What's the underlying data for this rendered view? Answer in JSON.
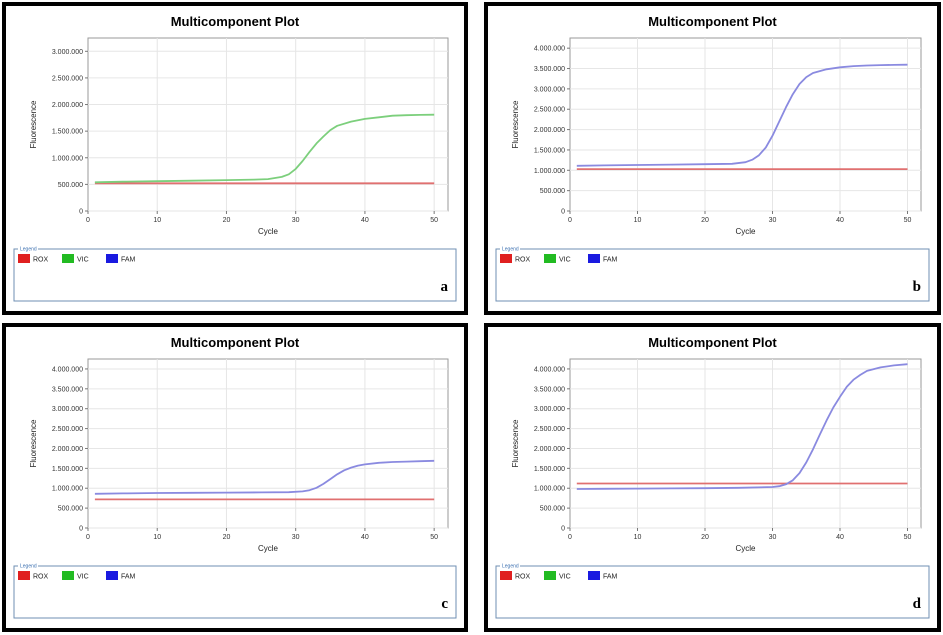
{
  "panels_meta": {
    "legend_title": "Legend",
    "legend_items": [
      {
        "label": "ROX",
        "color": "#e02020"
      },
      {
        "label": "VIC",
        "color": "#22bb22"
      },
      {
        "label": "FAM",
        "color": "#1a1ae0"
      }
    ]
  },
  "chart_data": [
    {
      "type": "line",
      "panel_label": "a",
      "title": "Multicomponent Plot",
      "xlabel": "Cycle",
      "ylabel": "Fluorescence",
      "xlim": [
        0,
        52
      ],
      "ylim": [
        0,
        3250000
      ],
      "xticks": [
        0,
        10,
        20,
        30,
        40,
        50
      ],
      "yticks": [
        0,
        500000,
        1000000,
        1500000,
        2000000,
        2500000,
        3000000
      ],
      "ytick_labels": [
        "0",
        "500.000",
        "1.000.000",
        "1.500.000",
        "2.000.000",
        "2.500.000",
        "3.000.000"
      ],
      "grid": true,
      "legend_position": "bottom",
      "series": [
        {
          "name": "ROX",
          "color": "#e07070",
          "x": [
            1,
            10,
            20,
            30,
            40,
            50
          ],
          "y": [
            520000,
            520000,
            520000,
            520000,
            520000,
            520000
          ]
        },
        {
          "name": "VIC",
          "color": "#7ccf7c",
          "x": [
            1,
            5,
            10,
            15,
            20,
            24,
            26,
            28,
            29,
            30,
            31,
            32,
            33,
            34,
            35,
            36,
            38,
            40,
            42,
            44,
            46,
            48,
            50
          ],
          "y": [
            540000,
            550000,
            560000,
            570000,
            580000,
            590000,
            600000,
            640000,
            690000,
            790000,
            940000,
            1110000,
            1270000,
            1400000,
            1520000,
            1600000,
            1680000,
            1730000,
            1760000,
            1790000,
            1800000,
            1805000,
            1810000
          ]
        }
      ]
    },
    {
      "type": "line",
      "panel_label": "b",
      "title": "Multicomponent Plot",
      "xlabel": "Cycle",
      "ylabel": "Fluorescence",
      "xlim": [
        0,
        52
      ],
      "ylim": [
        0,
        4250000
      ],
      "xticks": [
        0,
        10,
        20,
        30,
        40,
        50
      ],
      "yticks": [
        0,
        500000,
        1000000,
        1500000,
        2000000,
        2500000,
        3000000,
        3500000,
        4000000
      ],
      "ytick_labels": [
        "0",
        "500.000",
        "1.000.000",
        "1.500.000",
        "2.000.000",
        "2.500.000",
        "3.000.000",
        "3.500.000",
        "4.000.000"
      ],
      "grid": true,
      "legend_position": "bottom",
      "series": [
        {
          "name": "ROX",
          "color": "#e07070",
          "x": [
            1,
            10,
            20,
            30,
            40,
            50
          ],
          "y": [
            1030000,
            1030000,
            1030000,
            1030000,
            1030000,
            1030000
          ]
        },
        {
          "name": "FAM",
          "color": "#8a8ae0",
          "x": [
            1,
            5,
            10,
            15,
            20,
            24,
            26,
            27,
            28,
            29,
            30,
            31,
            32,
            33,
            34,
            35,
            36,
            38,
            40,
            42,
            44,
            46,
            48,
            50
          ],
          "y": [
            1110000,
            1120000,
            1130000,
            1140000,
            1150000,
            1160000,
            1200000,
            1260000,
            1370000,
            1560000,
            1850000,
            2200000,
            2550000,
            2870000,
            3120000,
            3290000,
            3390000,
            3480000,
            3530000,
            3560000,
            3575000,
            3585000,
            3590000,
            3595000
          ]
        }
      ]
    },
    {
      "type": "line",
      "panel_label": "c",
      "title": "Multicomponent Plot",
      "xlabel": "Cycle",
      "ylabel": "Fluorescence",
      "xlim": [
        0,
        52
      ],
      "ylim": [
        0,
        4250000
      ],
      "xticks": [
        0,
        10,
        20,
        30,
        40,
        50
      ],
      "yticks": [
        0,
        500000,
        1000000,
        1500000,
        2000000,
        2500000,
        3000000,
        3500000,
        4000000
      ],
      "ytick_labels": [
        "0",
        "500.000",
        "1.000.000",
        "1.500.000",
        "2.000.000",
        "2.500.000",
        "3.000.000",
        "3.500.000",
        "4.000.000"
      ],
      "grid": true,
      "legend_position": "bottom",
      "series": [
        {
          "name": "ROX",
          "color": "#e07070",
          "x": [
            1,
            10,
            20,
            30,
            40,
            50
          ],
          "y": [
            720000,
            720000,
            720000,
            720000,
            720000,
            720000
          ]
        },
        {
          "name": "FAM",
          "color": "#8a8ae0",
          "x": [
            1,
            5,
            10,
            15,
            20,
            25,
            29,
            31,
            32,
            33,
            34,
            35,
            36,
            37,
            38,
            39,
            40,
            42,
            44,
            46,
            48,
            50
          ],
          "y": [
            860000,
            870000,
            880000,
            885000,
            890000,
            895000,
            900000,
            920000,
            950000,
            1010000,
            1110000,
            1230000,
            1350000,
            1450000,
            1520000,
            1570000,
            1600000,
            1640000,
            1660000,
            1670000,
            1680000,
            1690000
          ]
        }
      ]
    },
    {
      "type": "line",
      "panel_label": "d",
      "title": "Multicomponent Plot",
      "xlabel": "Cycle",
      "ylabel": "Fluorescence",
      "xlim": [
        0,
        52
      ],
      "ylim": [
        0,
        4250000
      ],
      "xticks": [
        0,
        10,
        20,
        30,
        40,
        50
      ],
      "yticks": [
        0,
        500000,
        1000000,
        1500000,
        2000000,
        2500000,
        3000000,
        3500000,
        4000000
      ],
      "ytick_labels": [
        "0",
        "500.000",
        "1.000.000",
        "1.500.000",
        "2.000.000",
        "2.500.000",
        "3.000.000",
        "3.500.000",
        "4.000.000"
      ],
      "grid": true,
      "legend_position": "bottom",
      "series": [
        {
          "name": "ROX",
          "color": "#e07070",
          "x": [
            1,
            10,
            20,
            30,
            40,
            50
          ],
          "y": [
            1120000,
            1120000,
            1120000,
            1120000,
            1120000,
            1120000
          ]
        },
        {
          "name": "FAM",
          "color": "#8a8ae0",
          "x": [
            1,
            5,
            10,
            15,
            20,
            25,
            30,
            31,
            32,
            33,
            34,
            35,
            36,
            37,
            38,
            39,
            40,
            41,
            42,
            43,
            44,
            46,
            48,
            50
          ],
          "y": [
            980000,
            985000,
            990000,
            995000,
            1000000,
            1010000,
            1030000,
            1050000,
            1100000,
            1200000,
            1380000,
            1650000,
            1980000,
            2350000,
            2700000,
            3030000,
            3300000,
            3550000,
            3730000,
            3850000,
            3950000,
            4040000,
            4090000,
            4120000
          ]
        }
      ]
    }
  ]
}
